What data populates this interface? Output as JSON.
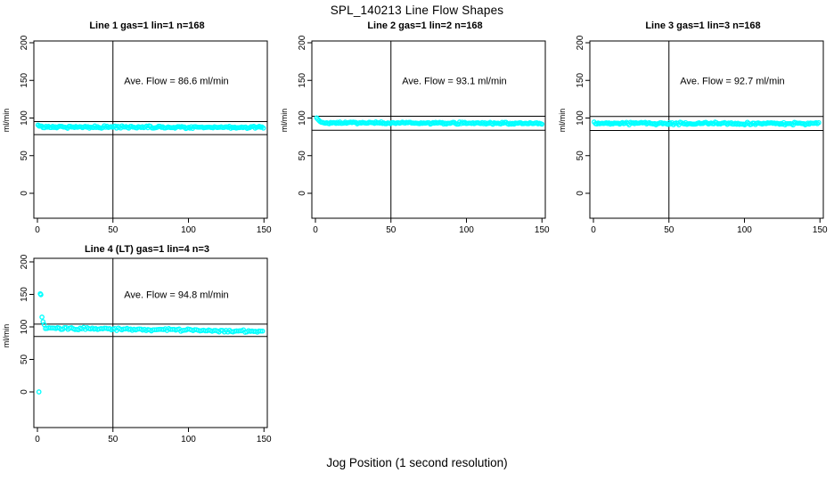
{
  "figure": {
    "title": "SPL_140213  Line Flow Shapes"
  },
  "chart_data": {
    "type": "scatter",
    "title": "SPL_140213  Line Flow Shapes",
    "xlabel": "Jog Position (1 second resolution)",
    "ylabel": "ml/min",
    "x_ticks": [
      0,
      50,
      100,
      150
    ],
    "y_ticks": [
      0,
      50,
      100,
      150,
      200
    ],
    "xlim": [
      -2,
      152
    ],
    "ylim_top_row": [
      -33,
      208
    ],
    "ylim_bottom_row": [
      -55,
      212
    ],
    "grid": false,
    "legend": null,
    "point_color": "#00FFFF",
    "axis_color": "#000000",
    "annotation_anchor": {
      "x": 92,
      "y": 150
    },
    "panels": [
      {
        "title": "Line 1 gas=1 lin=1 n=168",
        "line": 1,
        "gas": 1,
        "lin": 1,
        "n": 168,
        "avg_flow_ml_min": 86.6,
        "annotation": "Ave. Flow =  86.6  ml/min",
        "upper_limit": 95.3,
        "lower_limit": 77.9,
        "vline_x": 50,
        "transient_points": [
          [
            0.4,
            90.6
          ],
          [
            1.2,
            89.2
          ]
        ],
        "steady": {
          "x_from": 2.0,
          "x_to": 150,
          "v_start": 88.2,
          "v_end": 87.6,
          "step": 0.9,
          "jitter": 1.8
        }
      },
      {
        "title": "Line 2 gas=1 lin=2 n=168",
        "line": 2,
        "gas": 1,
        "lin": 2,
        "n": 168,
        "avg_flow_ml_min": 93.1,
        "annotation": "Ave. Flow =  93.1  ml/min",
        "upper_limit": 102.4,
        "lower_limit": 83.8,
        "vline_x": 50,
        "transient_points": [
          [
            0.8,
            100.2
          ],
          [
            1.6,
            98.4
          ],
          [
            2.4,
            96.6
          ],
          [
            3.2,
            95.2
          ],
          [
            4.0,
            94.3
          ]
        ],
        "steady": {
          "x_from": 4.8,
          "x_to": 150,
          "v_start": 93.6,
          "v_end": 93.0,
          "step": 0.88,
          "jitter": 1.5
        }
      },
      {
        "title": "Line 3 gas=1 lin=3 n=168",
        "line": 3,
        "gas": 1,
        "lin": 3,
        "n": 168,
        "avg_flow_ml_min": 92.7,
        "annotation": "Ave. Flow =  92.7  ml/min",
        "upper_limit": 102.0,
        "lower_limit": 83.4,
        "vline_x": 50,
        "transient_points": [],
        "steady": {
          "x_from": 0.5,
          "x_to": 150,
          "v_start": 92.9,
          "v_end": 92.4,
          "step": 0.89,
          "jitter": 2.0
        }
      },
      {
        "title": "Line 4 (LT) gas=1 lin=4 n=3",
        "line": 4,
        "gas": 1,
        "lin": 4,
        "n": 3,
        "avg_flow_ml_min": 94.8,
        "annotation": "Ave. Flow =  94.8  ml/min",
        "upper_limit": 104.3,
        "lower_limit": 85.3,
        "vline_x": 50,
        "transient_points": [
          [
            1.0,
            0
          ],
          [
            1.9,
            151
          ],
          [
            2.3,
            149.5
          ],
          [
            3.0,
            115
          ],
          [
            3.7,
            108
          ],
          [
            4.5,
            103.5
          ]
        ],
        "steady": {
          "x_from": 5.3,
          "x_to": 150,
          "v_start": 98.5,
          "v_end": 93.2,
          "step": 1.15,
          "jitter": 2.5
        }
      }
    ]
  }
}
